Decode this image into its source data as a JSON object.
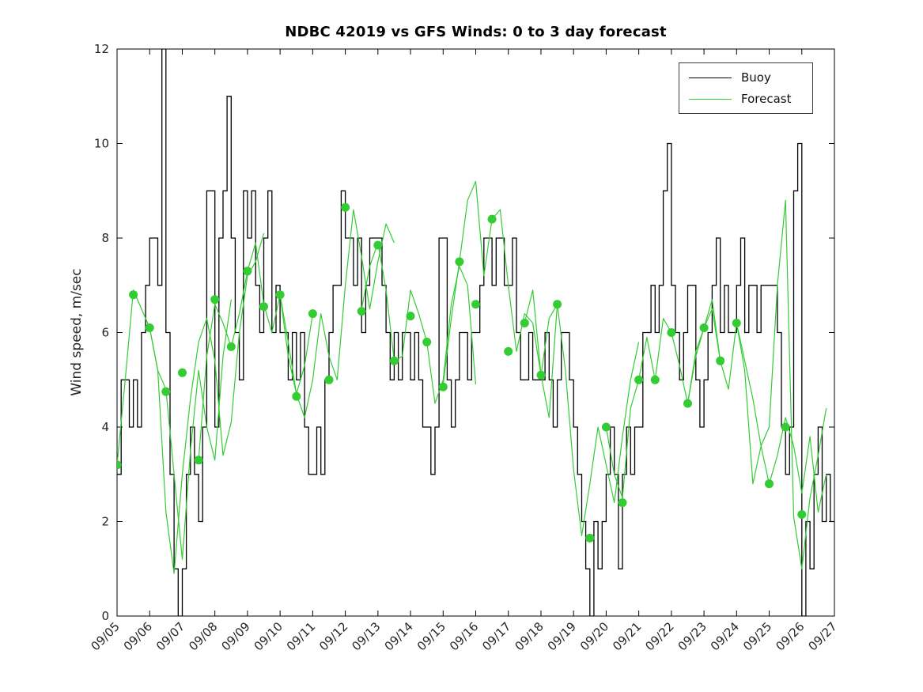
{
  "chart_data": {
    "type": "line",
    "title": "NDBC 42019 vs GFS Winds: 0 to 3 day forecast",
    "xlabel": "",
    "ylabel": "Wind speed, m/sec",
    "ylim": [
      0,
      12
    ],
    "y_ticks": [
      0,
      2,
      4,
      6,
      8,
      10,
      12
    ],
    "x_ticklabels": [
      "09/05",
      "09/06",
      "09/07",
      "09/08",
      "09/09",
      "09/10",
      "09/11",
      "09/12",
      "09/13",
      "09/14",
      "09/15",
      "09/16",
      "09/17",
      "09/18",
      "09/19",
      "09/20",
      "09/21",
      "09/22",
      "09/23",
      "09/24",
      "09/25",
      "09/26",
      "09/27"
    ],
    "grid": false,
    "legend_position": "top-right",
    "legend": [
      {
        "label": "Buoy",
        "color": "#000000"
      },
      {
        "label": "Forecast",
        "color": "#33cc33"
      }
    ],
    "series": [
      {
        "name": "Buoy",
        "style": "step",
        "color": "#000000",
        "start_day": 0,
        "step_days": 0.125,
        "units": "m/sec",
        "values": [
          3,
          5,
          5,
          4,
          5,
          4,
          6,
          7,
          8,
          8,
          7,
          12,
          6,
          3,
          1,
          0,
          1,
          3,
          4,
          3,
          2,
          4,
          9,
          9,
          4,
          8,
          9,
          11,
          8,
          6,
          5,
          9,
          8,
          9,
          7,
          6,
          8,
          9,
          6,
          7,
          6,
          6,
          5,
          6,
          5,
          6,
          4,
          3,
          3,
          4,
          3,
          5,
          6,
          7,
          7,
          9,
          8,
          8,
          7,
          8,
          6,
          7,
          8,
          8,
          8,
          7,
          6,
          5,
          6,
          5,
          6,
          6,
          5,
          6,
          5,
          4,
          4,
          3,
          4,
          8,
          8,
          5,
          4,
          5,
          6,
          6,
          5,
          6,
          6,
          7,
          8,
          8,
          7,
          8,
          8,
          7,
          7,
          8,
          6,
          5,
          5,
          6,
          5,
          5,
          5,
          6,
          5,
          4,
          5,
          6,
          6,
          5,
          4,
          3,
          2,
          1,
          0,
          2,
          1,
          2,
          3,
          4,
          3,
          1,
          3,
          4,
          3,
          4,
          4,
          6,
          6,
          7,
          6,
          7,
          9,
          10,
          7,
          6,
          5,
          6,
          7,
          7,
          5,
          4,
          5,
          6,
          7,
          8,
          6,
          7,
          6,
          6,
          7,
          8,
          6,
          7,
          7,
          6,
          7,
          7,
          7,
          7,
          6,
          4,
          3,
          4,
          9,
          10,
          0,
          2,
          1,
          3,
          4,
          2,
          3,
          2
        ]
      },
      {
        "name": "Forecast",
        "style": "line",
        "color": "#33cc33",
        "units": "m/sec",
        "runs": [
          {
            "start_day": 0,
            "step_days": 0.25,
            "values": [
              3.2,
              5.0,
              6.9,
              6.5,
              6.1,
              5.2,
              4.8,
              3.0,
              1.2,
              3.5,
              5.2,
              4.0,
              3.3,
              5.5,
              6.7
            ]
          },
          {
            "start_day": 1,
            "step_days": 0.25,
            "values": [
              6.1,
              5.2,
              2.2,
              0.9,
              3.0,
              4.6,
              5.8,
              6.3,
              5.4,
              3.4,
              4.1,
              6.0,
              7.2,
              7.5,
              8.1
            ]
          },
          {
            "start_day": 2.5,
            "step_days": 0.25,
            "values": [
              3.3,
              5.5,
              6.6,
              6.2,
              5.7,
              6.4,
              7.3,
              7.9,
              6.6,
              6.0,
              6.8,
              5.8,
              4.7,
              5.3,
              6.4
            ]
          },
          {
            "start_day": 5,
            "step_days": 0.25,
            "values": [
              6.8,
              5.5,
              4.7,
              4.2,
              5.0,
              6.4,
              5.5,
              5.0,
              7.0,
              8.6,
              7.6,
              6.5,
              7.5,
              8.3,
              7.9
            ]
          },
          {
            "start_day": 7.5,
            "step_days": 0.25,
            "values": [
              6.5,
              7.4,
              7.9,
              6.9,
              5.4,
              5.5,
              6.9,
              6.4,
              5.8,
              4.5,
              5.0,
              6.6,
              7.4,
              7.0,
              4.9
            ]
          },
          {
            "start_day": 10,
            "step_days": 0.25,
            "values": [
              4.9,
              6.3,
              7.5,
              8.8,
              9.2,
              7.2,
              8.4,
              8.6,
              7.0,
              5.6,
              6.4,
              6.2,
              5.1,
              4.2,
              6.6
            ]
          },
          {
            "start_day": 12.5,
            "step_days": 0.25,
            "values": [
              6.2,
              6.9,
              5.1,
              6.3,
              6.6,
              5.2,
              3.1,
              1.7,
              2.8,
              4.0,
              3.2,
              2.4,
              3.8,
              5.0,
              5.8
            ]
          },
          {
            "start_day": 15,
            "step_days": 0.25,
            "values": [
              4.0,
              3.0,
              2.5,
              4.4,
              5.0,
              5.9,
              5.0,
              6.3,
              6.0,
              5.3,
              4.5,
              5.6,
              6.1,
              6.5,
              5.4
            ]
          },
          {
            "start_day": 17.5,
            "step_days": 0.25,
            "values": [
              4.5,
              5.5,
              6.1,
              6.7,
              5.4,
              4.8,
              6.2,
              5.2,
              2.8,
              3.6,
              4.0,
              7.0,
              8.8,
              2.1,
              1.0,
              2.5,
              3.4,
              4.4
            ]
          },
          {
            "start_day": 19,
            "step_days": 0.25,
            "values": [
              6.2,
              5.4,
              4.6,
              3.6,
              2.8,
              3.4,
              4.2,
              3.6,
              2.6,
              3.8,
              2.2,
              3.0
            ]
          }
        ]
      }
    ],
    "markers": {
      "name": "Forecast 12-hourly points",
      "color": "#33cc33",
      "points": [
        [
          0,
          3.2
        ],
        [
          0.5,
          6.8
        ],
        [
          1,
          6.1
        ],
        [
          1.5,
          4.75
        ],
        [
          2,
          5.15
        ],
        [
          2.5,
          3.3
        ],
        [
          3,
          6.7
        ],
        [
          3.5,
          5.7
        ],
        [
          4,
          7.3
        ],
        [
          4.5,
          6.55
        ],
        [
          5,
          6.8
        ],
        [
          5.5,
          4.65
        ],
        [
          6,
          6.4
        ],
        [
          6.5,
          5.0
        ],
        [
          7,
          8.65
        ],
        [
          7.5,
          6.45
        ],
        [
          8,
          7.85
        ],
        [
          8.5,
          5.4
        ],
        [
          9,
          6.35
        ],
        [
          9.5,
          5.8
        ],
        [
          10,
          4.85
        ],
        [
          10.5,
          7.5
        ],
        [
          11,
          6.6
        ],
        [
          11.5,
          8.4
        ],
        [
          12,
          5.6
        ],
        [
          12.5,
          6.2
        ],
        [
          13,
          5.1
        ],
        [
          13.5,
          6.6
        ],
        [
          14.5,
          1.65
        ],
        [
          15,
          4.0
        ],
        [
          15.5,
          2.4
        ],
        [
          16,
          5.0
        ],
        [
          16.5,
          5.0
        ],
        [
          17,
          6.0
        ],
        [
          17.5,
          4.5
        ],
        [
          18,
          6.1
        ],
        [
          18.5,
          5.4
        ],
        [
          19,
          6.2
        ],
        [
          20,
          2.8
        ],
        [
          20.5,
          4.0
        ],
        [
          21,
          2.15
        ]
      ]
    }
  }
}
